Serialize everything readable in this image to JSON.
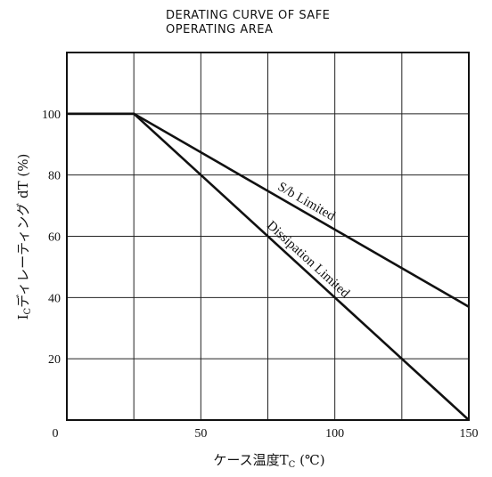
{
  "chart_data": {
    "type": "line",
    "title_lines": [
      "DERATING CURVE OF SAFE",
      "OPERATING AREA"
    ],
    "xlabel": {
      "main": "ケース温度T",
      "sub": "C",
      "unit": " (℃)"
    },
    "ylabel": {
      "main": "I",
      "sub": "C",
      "rest": "ディレーティング dT (%)"
    },
    "xlim": [
      0,
      150
    ],
    "ylim": [
      0,
      120
    ],
    "x_ticks": [
      0,
      50,
      100,
      150
    ],
    "y_ticks": [
      20,
      40,
      60,
      80,
      100
    ],
    "x_grid": [
      0,
      25,
      50,
      75,
      100,
      125,
      150
    ],
    "y_grid": [
      0,
      20,
      40,
      60,
      80,
      100,
      120
    ],
    "grid": true,
    "series": [
      {
        "key": "sb",
        "name": "S/b Limited",
        "points": [
          [
            0,
            100
          ],
          [
            25,
            100
          ],
          [
            150,
            37
          ]
        ]
      },
      {
        "key": "diss",
        "name": "Dissipation Limited",
        "points": [
          [
            0,
            100
          ],
          [
            25,
            100
          ],
          [
            150,
            0
          ]
        ]
      }
    ],
    "annotations": [
      {
        "series": "sb",
        "text": "S/b Limited",
        "x": 87.5,
        "anchor": "middle"
      },
      {
        "series": "diss",
        "text": "Dissipation Limited",
        "x": 87.5,
        "anchor": "middle"
      }
    ]
  }
}
